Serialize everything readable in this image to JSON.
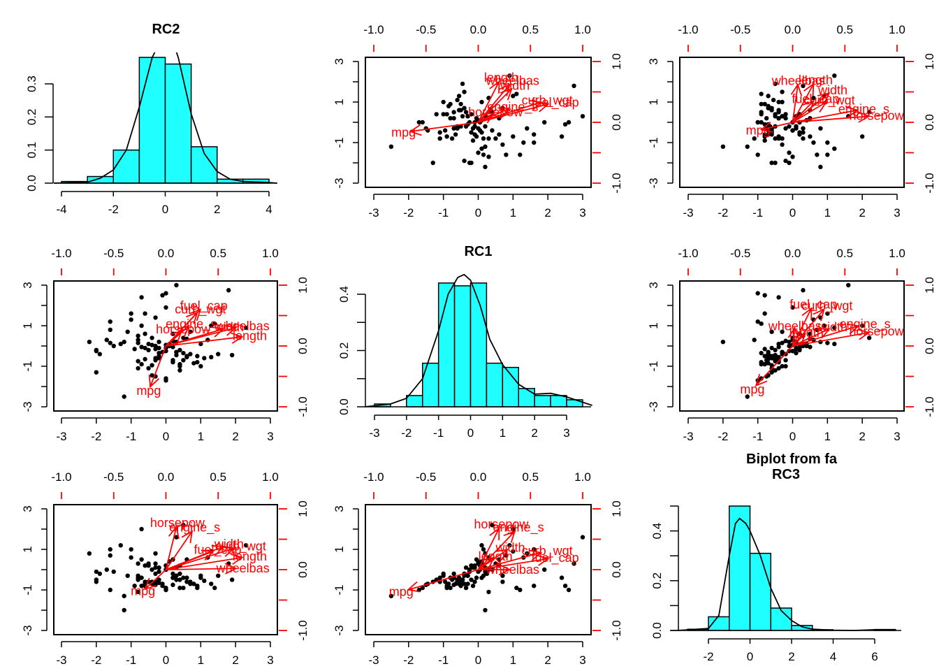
{
  "figure": {
    "type": "pairs biplot (psych::biplot of fa)",
    "overall_title": "Biplot from fa"
  },
  "chart_data": [
    {
      "panel": "row1-col1",
      "type": "bar",
      "title": "RC2",
      "subtype": "histogram with density",
      "bins": [
        [
          -4,
          -3
        ],
        [
          -3,
          -2
        ],
        [
          -2,
          -1
        ],
        [
          -1,
          0
        ],
        [
          0,
          1
        ],
        [
          1,
          2
        ],
        [
          2,
          3
        ],
        [
          3,
          4
        ]
      ],
      "values": [
        0.005,
        0.02,
        0.1,
        0.38,
        0.36,
        0.11,
        0.012,
        0.012
      ],
      "density_curve": {
        "x": [
          -4.3,
          -3,
          -2.5,
          -2,
          -1.5,
          -1,
          -0.5,
          -0.2,
          0,
          0.3,
          0.5,
          1,
          1.5,
          2,
          2.5,
          3,
          4,
          4.3
        ],
        "y": [
          0.0,
          0.003,
          0.015,
          0.04,
          0.1,
          0.23,
          0.38,
          0.45,
          0.48,
          0.45,
          0.38,
          0.21,
          0.09,
          0.035,
          0.012,
          0.005,
          0.002,
          0.0
        ]
      },
      "xticks": [
        "-4",
        "-2",
        "0",
        "2",
        "4"
      ],
      "yticks": [
        "0.0",
        "0.1",
        "0.2",
        "0.3"
      ],
      "xlim": [
        -4.3,
        4.3
      ],
      "ylim": [
        0,
        0.45
      ]
    },
    {
      "panel": "row2-col2",
      "type": "bar",
      "title": "RC1",
      "subtype": "histogram with density",
      "bins": [
        [
          -3,
          -2.5
        ],
        [
          -2.5,
          -2
        ],
        [
          -2,
          -1.5
        ],
        [
          -1.5,
          -1
        ],
        [
          -1,
          -0.5
        ],
        [
          -0.5,
          0
        ],
        [
          0,
          0.5
        ],
        [
          0.5,
          1
        ],
        [
          1,
          1.5
        ],
        [
          1.5,
          2
        ],
        [
          2,
          2.5
        ],
        [
          2.5,
          3
        ],
        [
          3,
          3.5
        ]
      ],
      "values": [
        0.01,
        0.0,
        0.04,
        0.155,
        0.44,
        0.43,
        0.44,
        0.155,
        0.14,
        0.065,
        0.04,
        0.04,
        0.025
      ],
      "density_curve": {
        "x": [
          -3.3,
          -2.5,
          -2,
          -1.5,
          -1,
          -0.7,
          -0.4,
          -0.2,
          0,
          0.3,
          0.6,
          1,
          1.5,
          2,
          2.5,
          3,
          3.8
        ],
        "y": [
          0.0,
          0.01,
          0.03,
          0.1,
          0.27,
          0.4,
          0.46,
          0.47,
          0.45,
          0.36,
          0.24,
          0.15,
          0.08,
          0.045,
          0.048,
          0.035,
          0.005
        ]
      },
      "xticks": [
        "-3",
        "-2",
        "-1",
        "0",
        "1",
        "2",
        "3"
      ],
      "yticks": [
        "0.0",
        "0.2",
        "0.4"
      ],
      "xlim": [
        -3.3,
        3.8
      ],
      "ylim": [
        0,
        0.48
      ]
    },
    {
      "panel": "row3-col3",
      "type": "bar",
      "title": "RC3",
      "subtype": "histogram with density",
      "bins": [
        [
          -3,
          -2
        ],
        [
          -2,
          -1
        ],
        [
          -1,
          0
        ],
        [
          0,
          1
        ],
        [
          1,
          2
        ],
        [
          2,
          3
        ],
        [
          3,
          4
        ],
        [
          4,
          5
        ],
        [
          5,
          6
        ],
        [
          6,
          7
        ]
      ],
      "values": [
        0.005,
        0.055,
        0.5,
        0.31,
        0.09,
        0.02,
        0.003,
        0.0,
        0.0,
        0.004
      ],
      "density_curve": {
        "x": [
          -3.5,
          -2,
          -1.5,
          -1,
          -0.7,
          -0.5,
          -0.2,
          0,
          0.5,
          1,
          1.5,
          2,
          2.5,
          3,
          4,
          5,
          6,
          7
        ],
        "y": [
          0.0,
          0.008,
          0.06,
          0.3,
          0.43,
          0.45,
          0.43,
          0.4,
          0.3,
          0.17,
          0.08,
          0.04,
          0.015,
          0.005,
          0.001,
          0.0,
          0.003,
          0.002
        ]
      },
      "xticks": [
        "-2",
        "0",
        "2",
        "4",
        "6"
      ],
      "yticks": [
        "0.0",
        "0.2",
        "0.4"
      ],
      "xlim": [
        -3.5,
        7.3
      ],
      "ylim": [
        0,
        0.5
      ]
    },
    {
      "panel": "row1-col2",
      "type": "scatter",
      "subtype": "biplot",
      "xfactor": "RC1",
      "yfactor": "RC2",
      "xlim": [
        -3,
        3
      ],
      "ylim": [
        -3,
        3
      ],
      "loading_lim": [
        -1,
        1
      ],
      "xticks": [
        "-3",
        "-2",
        "-1",
        "0",
        "1",
        "2",
        "3"
      ],
      "yticks": [
        "-3",
        "-1",
        "1",
        "3"
      ],
      "y_minor_ticks": [
        "-2",
        "0",
        "2"
      ],
      "top_ticks": [
        "-1.0",
        "-0.5",
        "0.0",
        "0.5",
        "1.0"
      ],
      "right_ticks": [
        "-1.0",
        "0.0",
        "1.0"
      ],
      "arrows": [
        {
          "label": "mpg",
          "x": -0.65,
          "y": -0.15
        },
        {
          "label": "length",
          "x": 0.2,
          "y": 0.67
        },
        {
          "label": "wheelbas",
          "x": 0.3,
          "y": 0.62
        },
        {
          "label": "width",
          "x": 0.32,
          "y": 0.55
        },
        {
          "label": "curb_wgt",
          "x": 0.6,
          "y": 0.33
        },
        {
          "label": "fuel_cap",
          "x": 0.67,
          "y": 0.3
        },
        {
          "label": "engine_s",
          "x": 0.3,
          "y": 0.23
        },
        {
          "label": "horsepow",
          "x": 0.15,
          "y": 0.15
        }
      ]
    },
    {
      "panel": "row1-col3",
      "type": "scatter",
      "subtype": "biplot",
      "xfactor": "RC3",
      "yfactor": "RC2",
      "xlim": [
        -3,
        3
      ],
      "ylim": [
        -3,
        3
      ],
      "loading_lim": [
        -1,
        1
      ],
      "xticks": [
        "-3",
        "-2",
        "-1",
        "0",
        "1",
        "2",
        "3"
      ],
      "yticks": [
        "-3",
        "-1",
        "1",
        "3"
      ],
      "top_ticks": [
        "-1.0",
        "-0.5",
        "0.0",
        "0.5",
        "1.0"
      ],
      "right_ticks": [
        "-1.0",
        "0.0",
        "1.0"
      ],
      "arrows": [
        {
          "label": "mpg",
          "x": -0.3,
          "y": -0.12
        },
        {
          "label": "wheelbas",
          "x": 0.05,
          "y": 0.62
        },
        {
          "label": "length",
          "x": 0.2,
          "y": 0.63
        },
        {
          "label": "width",
          "x": 0.35,
          "y": 0.48
        },
        {
          "label": "fuel_cap",
          "x": 0.2,
          "y": 0.35
        },
        {
          "label": "curb_wgt",
          "x": 0.32,
          "y": 0.33
        },
        {
          "label": "engine_s",
          "x": 0.62,
          "y": 0.2
        },
        {
          "label": "horsepow",
          "x": 0.73,
          "y": 0.1
        }
      ]
    },
    {
      "panel": "row2-col1",
      "type": "scatter",
      "subtype": "biplot",
      "xfactor": "RC2",
      "yfactor": "RC1",
      "xlim": [
        -3,
        3
      ],
      "ylim": [
        -3,
        3
      ],
      "loading_lim": [
        -1,
        1
      ],
      "xticks": [
        "-3",
        "-2",
        "-1",
        "0",
        "1",
        "2",
        "3"
      ],
      "yticks": [
        "-3",
        "-1",
        "1",
        "3"
      ],
      "top_ticks": [
        "-1.0",
        "-0.5",
        "0.0",
        "0.5",
        "1.0"
      ],
      "right_ticks": [
        "-1.0",
        "0.0",
        "1.0"
      ],
      "arrows": [
        {
          "label": "mpg",
          "x": -0.15,
          "y": -0.67
        },
        {
          "label": "fuel_cap",
          "x": 0.33,
          "y": 0.6
        },
        {
          "label": "curb_wgt",
          "x": 0.3,
          "y": 0.55
        },
        {
          "label": "engine_s",
          "x": 0.22,
          "y": 0.33
        },
        {
          "label": "horsepow",
          "x": 0.15,
          "y": 0.25
        },
        {
          "label": "width",
          "x": 0.55,
          "y": 0.28
        },
        {
          "label": "wheelbas",
          "x": 0.67,
          "y": 0.3
        },
        {
          "label": "length",
          "x": 0.73,
          "y": 0.15
        }
      ]
    },
    {
      "panel": "row2-col3",
      "type": "scatter",
      "subtype": "biplot",
      "xfactor": "RC3",
      "yfactor": "RC1",
      "xlim": [
        -3,
        3
      ],
      "ylim": [
        -3,
        3
      ],
      "loading_lim": [
        -1,
        1
      ],
      "xticks": [
        "-3",
        "-2",
        "-1",
        "0",
        "1",
        "2",
        "3"
      ],
      "yticks": [
        "-3",
        "-1",
        "1",
        "3"
      ],
      "top_ticks": [
        "-1.0",
        "-0.5",
        "0.0",
        "0.5",
        "1.0"
      ],
      "right_ticks": [
        "-1.0",
        "0.0",
        "1.0"
      ],
      "arrows": [
        {
          "label": "mpg",
          "x": -0.35,
          "y": -0.65
        },
        {
          "label": "fuel_cap",
          "x": 0.18,
          "y": 0.62
        },
        {
          "label": "curb_wgt",
          "x": 0.3,
          "y": 0.6
        },
        {
          "label": "wheelbas",
          "x": 0.02,
          "y": 0.3
        },
        {
          "label": "length",
          "x": 0.12,
          "y": 0.2
        },
        {
          "label": "width",
          "x": 0.35,
          "y": 0.28
        },
        {
          "label": "engine_s",
          "x": 0.63,
          "y": 0.33
        },
        {
          "label": "horsepow",
          "x": 0.73,
          "y": 0.22
        }
      ]
    },
    {
      "panel": "row3-col1",
      "type": "scatter",
      "subtype": "biplot",
      "xfactor": "RC2",
      "yfactor": "RC3",
      "xlim": [
        -3,
        3
      ],
      "ylim": [
        -3,
        3
      ],
      "loading_lim": [
        -1,
        1
      ],
      "xticks": [
        "-3",
        "-2",
        "-1",
        "0",
        "1",
        "2",
        "3"
      ],
      "yticks": [
        "-3",
        "-1",
        "1",
        "3"
      ],
      "top_ticks": [
        "-1.0",
        "-0.5",
        "0.0",
        "0.5",
        "1.0"
      ],
      "right_ticks": [
        "-1.0",
        "0.0",
        "1.0"
      ],
      "arrows": [
        {
          "label": "mpg",
          "x": -0.2,
          "y": -0.32
        },
        {
          "label": "horsepow",
          "x": 0.1,
          "y": 0.7
        },
        {
          "label": "engine_s",
          "x": 0.25,
          "y": 0.63
        },
        {
          "label": "curb_wgt",
          "x": 0.65,
          "y": 0.35
        },
        {
          "label": "width",
          "x": 0.55,
          "y": 0.38
        },
        {
          "label": "fuel_cap",
          "x": 0.45,
          "y": 0.3
        },
        {
          "label": "length",
          "x": 0.73,
          "y": 0.2
        },
        {
          "label": "wheelbas",
          "x": 0.67,
          "y": 0.02
        }
      ]
    },
    {
      "panel": "row3-col2",
      "type": "scatter",
      "subtype": "biplot",
      "xfactor": "RC1",
      "yfactor": "RC3",
      "xlim": [
        -3,
        3
      ],
      "ylim": [
        -3,
        3
      ],
      "loading_lim": [
        -1,
        1
      ],
      "xticks": [
        "-3",
        "-2",
        "-1",
        "0",
        "1",
        "2",
        "3"
      ],
      "yticks": [
        "-3",
        "-1",
        "1",
        "3"
      ],
      "top_ticks": [
        "-1.0",
        "-0.5",
        "0.0",
        "0.5",
        "1.0"
      ],
      "right_ticks": [
        "-1.0",
        "0.0",
        "1.0"
      ],
      "arrows": [
        {
          "label": "mpg",
          "x": -0.67,
          "y": -0.33
        },
        {
          "label": "horsepow",
          "x": 0.2,
          "y": 0.68
        },
        {
          "label": "engine_s",
          "x": 0.35,
          "y": 0.63
        },
        {
          "label": "width",
          "x": 0.28,
          "y": 0.33
        },
        {
          "label": "curb_wgt",
          "x": 0.6,
          "y": 0.28
        },
        {
          "label": "fuel_cap",
          "x": 0.67,
          "y": 0.18
        },
        {
          "label": "length",
          "x": 0.15,
          "y": 0.2
        },
        {
          "label": "wheelbas",
          "x": 0.3,
          "y": 0.0
        }
      ]
    }
  ],
  "scores": {
    "RC1": [
      -2.5,
      -1.7,
      -1.6,
      -1.5,
      -1.45,
      -1.2,
      -1.1,
      -1.1,
      -1.0,
      -1.0,
      -0.95,
      -0.9,
      -0.85,
      -0.8,
      -0.75,
      -0.7,
      -0.7,
      -0.65,
      -0.6,
      -0.6,
      -0.55,
      -0.55,
      -0.5,
      -0.5,
      -0.45,
      -0.45,
      -0.4,
      -0.4,
      -0.35,
      -0.35,
      -0.3,
      -0.3,
      -0.25,
      -0.25,
      -0.2,
      -0.2,
      -0.15,
      -0.15,
      -0.1,
      -0.1,
      -0.05,
      -0.05,
      0.0,
      0.0,
      0.05,
      0.05,
      0.1,
      0.1,
      0.1,
      0.15,
      0.15,
      0.2,
      0.2,
      0.25,
      0.3,
      0.3,
      0.35,
      0.4,
      0.5,
      0.6,
      0.7,
      0.8,
      0.9,
      1.0,
      1.1,
      1.2,
      1.3,
      1.4,
      1.6,
      1.6,
      1.9,
      2.4,
      2.5,
      2.6,
      2.75,
      3.0,
      -0.9,
      -0.6,
      -0.3,
      -0.2,
      0.0,
      0.1,
      0.2,
      -0.5,
      -0.4,
      -0.7,
      -0.8,
      0.4,
      0.6,
      -1.3,
      -0.1,
      0.2,
      0.3,
      0.7,
      1.0
    ],
    "RC2": [
      -1.2,
      0.0,
      0.0,
      -0.3,
      -0.4,
      0.4,
      -0.8,
      -0.5,
      1.0,
      0.4,
      -0.4,
      -0.7,
      0.8,
      0.9,
      -0.8,
      0.5,
      0.2,
      -0.6,
      1.1,
      -0.3,
      0.6,
      1.3,
      0.9,
      -0.2,
      1.9,
      0.3,
      1.5,
      -1.9,
      -0.2,
      0.5,
      0.3,
      -0.1,
      -2.0,
      0.0,
      -0.5,
      -2.0,
      -0.9,
      -0.3,
      0.0,
      -0.6,
      -0.7,
      0.2,
      0.1,
      -1.5,
      0.0,
      -0.4,
      -0.5,
      -1.3,
      1.0,
      -1.6,
      -0.8,
      -2.2,
      0.3,
      0.2,
      1.2,
      -1.7,
      0.6,
      0.5,
      -0.8,
      -0.6,
      0.7,
      -1.6,
      2.3,
      1.3,
      1.4,
      -1.6,
      -1.0,
      -0.3,
      -0.6,
      -1.0,
      0.0,
      -0.7,
      -0.1,
      0.0,
      1.8,
      0.3,
      0.4,
      -0.2,
      0.3,
      0.4,
      -0.3,
      0.1,
      -0.2,
      0.6,
      0.7,
      -0.3,
      0.2,
      -0.4,
      0.2,
      -2.0,
      -0.2,
      -1.2,
      -0.8,
      -1.1,
      -0.7
    ],
    "RC3": [
      -1.3,
      -1.0,
      -0.9,
      -0.75,
      -0.7,
      -0.5,
      -0.4,
      -0.6,
      -0.3,
      -0.2,
      -0.6,
      -0.8,
      -0.7,
      -0.9,
      -0.5,
      -0.4,
      -0.75,
      -0.7,
      -0.55,
      -0.6,
      -0.4,
      -0.7,
      -0.8,
      -0.65,
      -0.5,
      -0.5,
      -0.3,
      -0.2,
      0.1,
      -0.9,
      -0.3,
      -0.7,
      -0.1,
      0.0,
      0.2,
      -0.5,
      -0.8,
      0.1,
      0.2,
      -0.6,
      0.5,
      -0.4,
      0.4,
      -0.1,
      0.2,
      0.0,
      0.3,
      1.2,
      -0.4,
      1.0,
      -0.3,
      0.8,
      0.1,
      -0.2,
      0.6,
      0.0,
      0.5,
      2.2,
      0.3,
      0.2,
      -0.6,
      0.7,
      1.2,
      0.9,
      -0.9,
      -1.0,
      0.6,
      0.8,
      -0.8,
      1.0,
      0.0,
      -0.4,
      -0.8,
      -1.0,
      0.3,
      1.6,
      -0.9,
      -0.5,
      -0.3,
      0.2,
      0.3,
      0.4,
      -0.1,
      -0.6,
      -0.7,
      -0.2,
      -0.4,
      0.0,
      0.5,
      -0.6,
      0.1,
      -2.0,
      -1.1,
      -0.3,
      2.0
    ]
  }
}
